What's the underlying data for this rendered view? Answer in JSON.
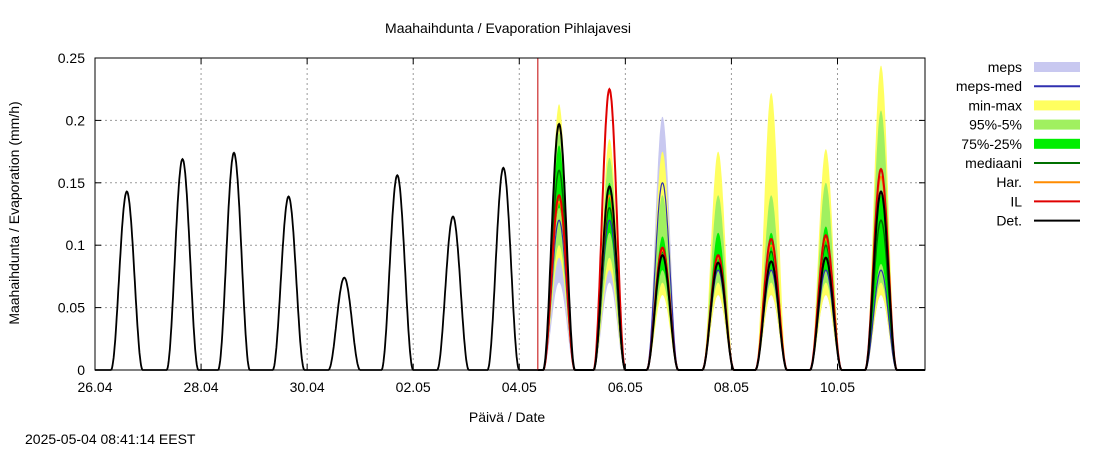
{
  "chart_data": {
    "type": "area",
    "title": "Maahaihdunta / Evaporation  Pihlajavesi",
    "xlabel": "Päivä / Date",
    "ylabel": "Maahaihdunta / Evaporation (mm/h)",
    "footer": "2025-05-04 08:41:14 EEST",
    "x_unit": "day of period (0 = 26.04)",
    "xlim": [
      0,
      15.65
    ],
    "ylim": [
      0,
      0.25
    ],
    "x_ticks": [
      {
        "x": 0,
        "label": "26.04"
      },
      {
        "x": 2,
        "label": "28.04"
      },
      {
        "x": 4,
        "label": "30.04"
      },
      {
        "x": 6,
        "label": "02.05"
      },
      {
        "x": 8,
        "label": "04.05"
      },
      {
        "x": 10,
        "label": "06.05"
      },
      {
        "x": 12,
        "label": "08.05"
      },
      {
        "x": 14,
        "label": "10.05"
      }
    ],
    "y_ticks": [
      {
        "y": 0,
        "label": "0"
      },
      {
        "y": 0.05,
        "label": "0.05"
      },
      {
        "y": 0.1,
        "label": "0.1"
      },
      {
        "y": 0.15,
        "label": "0.15"
      },
      {
        "y": 0.2,
        "label": "0.2"
      },
      {
        "y": 0.25,
        "label": "0.25"
      }
    ],
    "grid": true,
    "forecast_start_x": 8.35,
    "legend_position": "right",
    "legend": [
      {
        "key": "meps",
        "label": "meps",
        "color": "#c8c8f0",
        "style": "band"
      },
      {
        "key": "meps_med",
        "label": "meps-med",
        "color": "#3030b0",
        "style": "line"
      },
      {
        "key": "minmax",
        "label": "min-max",
        "color": "#ffff60",
        "style": "band"
      },
      {
        "key": "p95_5",
        "label": "95%-5%",
        "color": "#a0f060",
        "style": "band"
      },
      {
        "key": "p75_25",
        "label": "75%-25%",
        "color": "#00ee00",
        "style": "band"
      },
      {
        "key": "mediaani",
        "label": "mediaani",
        "color": "#007000",
        "style": "line"
      },
      {
        "key": "har",
        "label": "Har.",
        "color": "#ff8c00",
        "style": "line"
      },
      {
        "key": "il",
        "label": "IL",
        "color": "#e00000",
        "style": "line"
      },
      {
        "key": "det",
        "label": "Det.",
        "color": "#000000",
        "style": "line"
      }
    ],
    "observed_daily_peaks": [
      {
        "center": 0.6,
        "peak": 0.143
      },
      {
        "center": 1.65,
        "peak": 0.169
      },
      {
        "center": 2.62,
        "peak": 0.174
      },
      {
        "center": 3.65,
        "peak": 0.139
      },
      {
        "center": 4.7,
        "peak": 0.074
      },
      {
        "center": 5.7,
        "peak": 0.156
      },
      {
        "center": 6.75,
        "peak": 0.123
      },
      {
        "center": 7.7,
        "peak": 0.162
      }
    ],
    "forecast_daily": [
      {
        "center": 8.75,
        "min": 0.09,
        "max": 0.213,
        "p5": 0.1,
        "p95": 0.19,
        "p25": 0.13,
        "p75": 0.18,
        "median": 0.16,
        "meps_lo": 0.07,
        "meps_hi": 0.15,
        "meps_med": 0.12,
        "det": 0.197,
        "il": 0.14,
        "har": 0.135
      },
      {
        "center": 9.7,
        "min": 0.08,
        "max": 0.185,
        "p5": 0.09,
        "p95": 0.17,
        "p25": 0.11,
        "p75": 0.15,
        "median": 0.13,
        "meps_lo": 0.07,
        "meps_hi": 0.16,
        "meps_med": 0.12,
        "det": 0.147,
        "il": 0.225,
        "har": 0.14
      },
      {
        "center": 10.7,
        "min": 0.06,
        "max": 0.175,
        "p5": 0.07,
        "p95": 0.14,
        "p25": 0.08,
        "p75": 0.107,
        "median": 0.095,
        "meps_lo": 0.13,
        "meps_hi": 0.203,
        "meps_med": 0.15,
        "det": 0.092,
        "il": 0.098,
        "har": 0.096
      },
      {
        "center": 11.75,
        "min": 0.06,
        "max": 0.175,
        "p5": 0.07,
        "p95": 0.14,
        "p25": 0.08,
        "p75": 0.11,
        "median": 0.09,
        "meps_lo": 0.06,
        "meps_hi": 0.09,
        "meps_med": 0.08,
        "det": 0.086,
        "il": 0.092,
        "har": 0.09
      },
      {
        "center": 12.75,
        "min": 0.06,
        "max": 0.222,
        "p5": 0.07,
        "p95": 0.14,
        "p25": 0.08,
        "p75": 0.11,
        "median": 0.095,
        "meps_lo": 0.06,
        "meps_hi": 0.09,
        "meps_med": 0.08,
        "det": 0.087,
        "il": 0.105,
        "har": 0.1
      },
      {
        "center": 13.78,
        "min": 0.06,
        "max": 0.177,
        "p5": 0.07,
        "p95": 0.15,
        "p25": 0.08,
        "p75": 0.115,
        "median": 0.1,
        "meps_lo": 0.06,
        "meps_hi": 0.09,
        "meps_med": 0.08,
        "det": 0.09,
        "il": 0.108,
        "har": 0.105
      },
      {
        "center": 14.82,
        "min": 0.06,
        "max": 0.244,
        "p5": 0.07,
        "p95": 0.208,
        "p25": 0.085,
        "p75": 0.14,
        "median": 0.12,
        "meps_lo": 0.06,
        "meps_hi": 0.09,
        "meps_med": 0.08,
        "det": 0.143,
        "il": 0.161,
        "har": 0.155
      }
    ]
  }
}
